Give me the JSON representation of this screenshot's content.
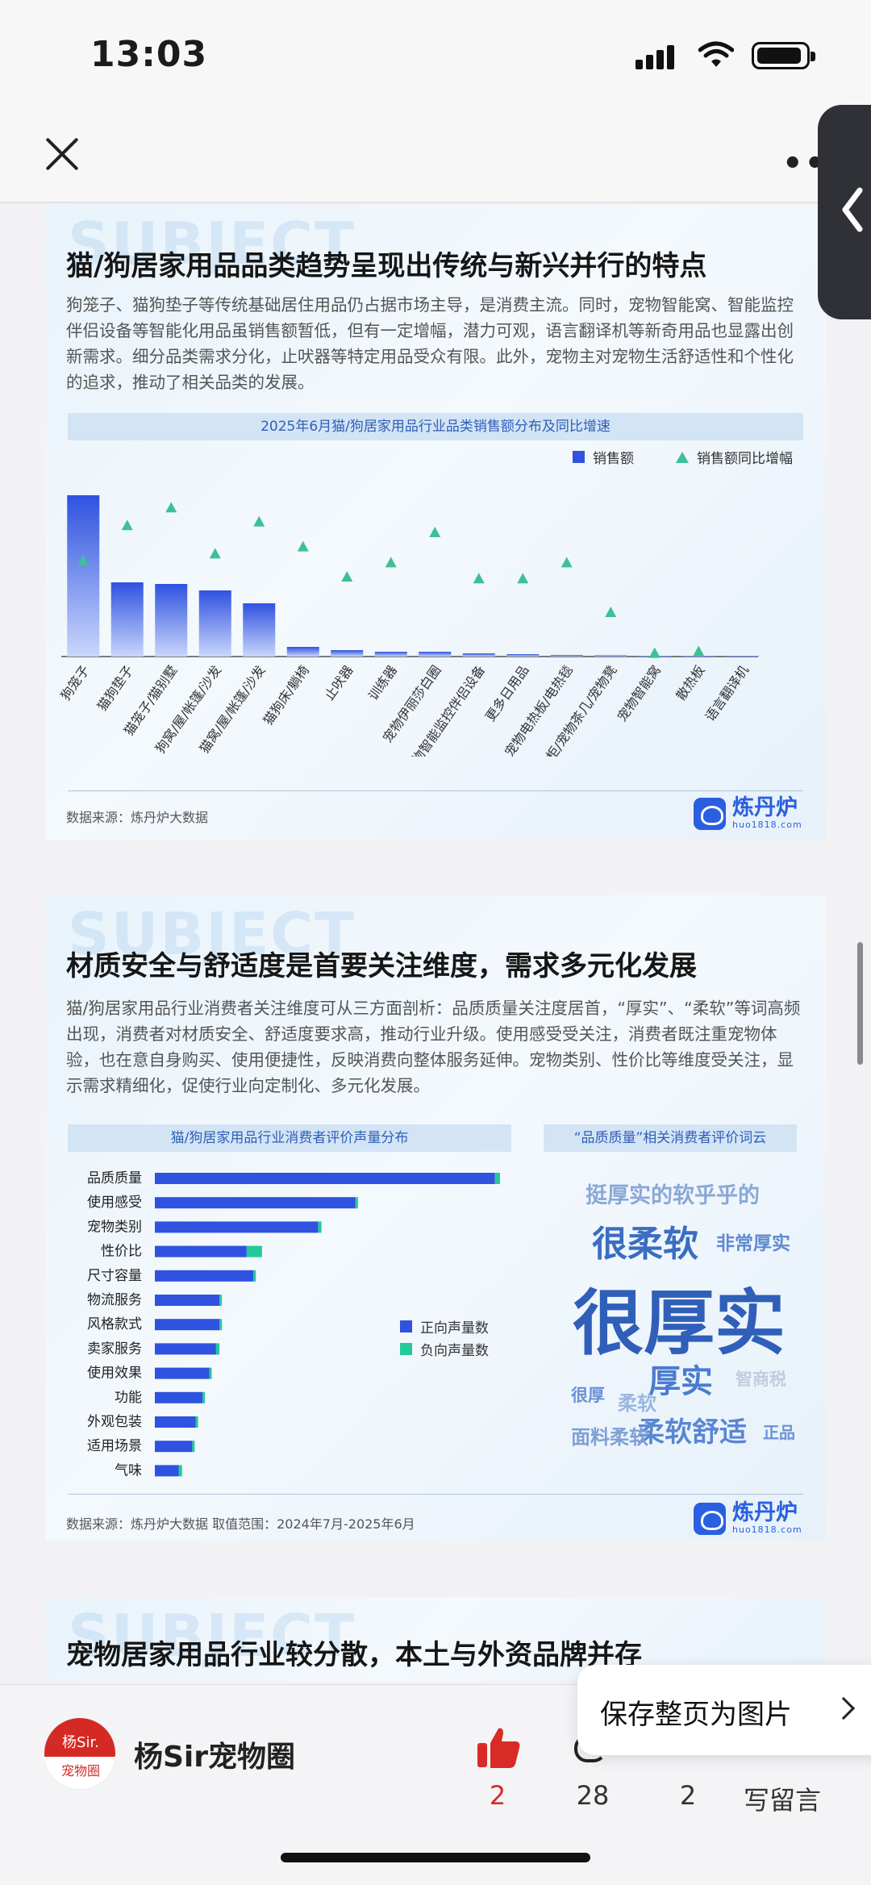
{
  "status_bar": {
    "time": "13:03"
  },
  "card1": {
    "watermark": "SUBJECT",
    "title": "猫/狗居家用品品类趋势呈现出传统与新兴并行的特点",
    "description": "狗笼子、猫狗垫子等传统基础居住用品仍占据市场主导，是消费主流。同时，宠物智能窝、智能监控伴侣设备等智能化用品虽销售额暂低，但有一定增幅，潜力可观，语言翻译机等新奇用品也显露出创新需求。细分品类需求分化，止吠器等特定用品受众有限。此外，宠物主对宠物生活舒适性和个性化的追求，推动了相关品类的发展。",
    "chart_title": "2025年6月猫/狗居家用品行业品类销售额分布及同比增速",
    "legend_bar": "销售额",
    "legend_marker": "销售额同比增幅",
    "source": "数据来源：炼丹炉大数据",
    "logo_cn": "炼丹炉",
    "logo_en": "huo1818.com"
  },
  "card2": {
    "watermark": "SUBJECT",
    "title": "材质安全与舒适度是首要关注维度，需求多元化发展",
    "description": "猫/狗居家用品行业消费者关注维度可从三方面剖析：品质质量关注度居首，“厚实”、“柔软”等词高频出现，消费者对材质安全、舒适度要求高，推动行业升级。使用感受受关注，消费者既注重宠物体验，也在意自身购买、使用便捷性，反映消费向整体服务延伸。宠物类别、性价比等维度受关注，显示需求精细化，促使行业向定制化、多元化发展。",
    "chart_title": "猫/狗居家用品行业消费者评价声量分布",
    "cloud_title": "“品质质量”相关消费者评价词云",
    "legend_pos": "正向声量数",
    "legend_neg": "负向声量数",
    "source": "数据来源：炼丹炉大数据    取值范围：2024年7月-2025年6月",
    "logo_cn": "炼丹炉",
    "logo_en": "huo1818.com",
    "word_cloud": [
      {
        "text": "挺厚实的软乎乎的",
        "color": "#8aa8d6"
      },
      {
        "text": "很柔软",
        "color": "#3b6dc0"
      },
      {
        "text": "非常厚实",
        "color": "#5f8ad0"
      },
      {
        "text": "很厚实",
        "color": "#2f5fb8"
      },
      {
        "text": "厚实",
        "color": "#4b7bd0"
      },
      {
        "text": "智商税",
        "color": "#c2cce0"
      },
      {
        "text": "很厚",
        "color": "#6a92d6"
      },
      {
        "text": "柔软",
        "color": "#9ab6e0"
      },
      {
        "text": "柔软舒适",
        "color": "#5a86d2"
      },
      {
        "text": "正品",
        "color": "#6a92d6"
      },
      {
        "text": "面料柔软",
        "color": "#7f9fd6"
      }
    ]
  },
  "card3": {
    "watermark": "SUBJECT",
    "title": "宠物居家用品行业较分散，本土与外资品牌并存"
  },
  "bottom_bar": {
    "avatar_line1": "杨Sir.",
    "avatar_line2": "宠物圈",
    "account_name": "杨Sir宠物圈",
    "like_count": "2",
    "comment_count": "28",
    "share_count": "2",
    "write_comment": "写留言"
  },
  "save_popup": {
    "label": "保存整页为图片"
  },
  "chart_data": [
    {
      "type": "bar",
      "title": "2025年6月猫/狗居家用品行业品类销售额分布及同比增速",
      "categories": [
        "狗笼子",
        "猫狗垫子",
        "猫笼子/猫别墅",
        "狗窝/屋/帐篷/沙发",
        "猫窝/屋/帐篷/沙发",
        "猫狗床/躺椅",
        "止吠器",
        "训练器",
        "宠物伊丽莎白圈",
        "宠物智能监控伴侣设备",
        "更多日用品",
        "宠物电热板/电热毯",
        "宠物柜/宠物茶几/宠物凳",
        "宠物智能窝",
        "散热板",
        "语言翻译机"
      ],
      "series": [
        {
          "name": "销售额",
          "kind": "bar",
          "color": "#2f52e0",
          "values": [
            100,
            46,
            45,
            41,
            33,
            6,
            4,
            3,
            3,
            2,
            1.5,
            1,
            0.8,
            0.3,
            0.2,
            0.1
          ]
        },
        {
          "name": "销售额同比增幅",
          "kind": "marker",
          "color": "#3fbf96",
          "values": [
            0.54,
            0.74,
            0.84,
            0.58,
            0.76,
            0.62,
            0.45,
            0.53,
            0.7,
            0.44,
            0.44,
            0.53,
            0.25,
            0.02,
            0.03,
            null
          ]
        }
      ],
      "y_axis_labels": false,
      "legend": "top-right"
    },
    {
      "type": "bar",
      "orientation": "horizontal",
      "title": "猫/狗居家用品行业消费者评价声量分布",
      "categories": [
        "品质质量",
        "使用感受",
        "宠物类别",
        "性价比",
        "尺寸容量",
        "物流服务",
        "风格款式",
        "卖家服务",
        "使用效果",
        "功能",
        "外观包装",
        "适用场景",
        "气味"
      ],
      "series": [
        {
          "name": "正向声量数",
          "color": "#2f52e0",
          "values": [
            100,
            59,
            48,
            27,
            29,
            19,
            19,
            18,
            16,
            14,
            12,
            11,
            7
          ]
        },
        {
          "name": "负向声量数",
          "color": "#22c99b",
          "values": [
            1.5,
            0.5,
            1,
            4.5,
            0.5,
            0.5,
            0.5,
            1,
            0.5,
            0.3,
            0.5,
            0.3,
            1
          ]
        }
      ],
      "legend": "bottom-right"
    }
  ]
}
